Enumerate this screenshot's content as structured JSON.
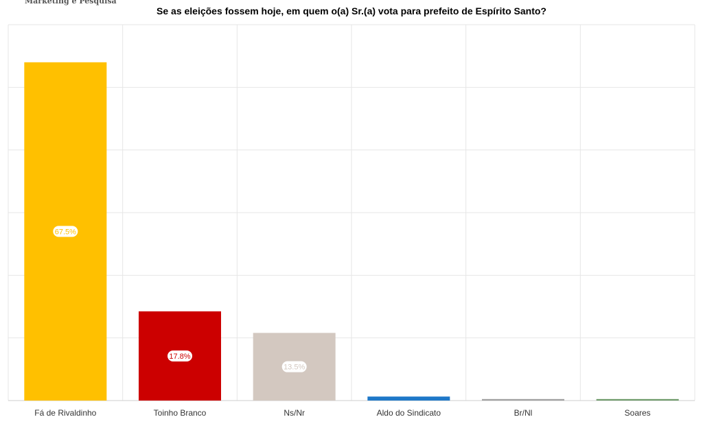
{
  "brand": {
    "subtitle_text": "Marketing e Pesquisa"
  },
  "chart_data": {
    "type": "bar",
    "title": "Se as eleições fossem hoje, em quem o(a) Sr.(a) vota para prefeito de Espírito Santo?",
    "xlabel": "",
    "ylabel": "",
    "categories": [
      "Fá de Rivaldinho",
      "Toinho Branco",
      "Ns/Nr",
      "Aldo do Sindicato",
      "Br/Nl",
      "Soares"
    ],
    "values": [
      67.5,
      17.8,
      13.5,
      0.8,
      0.3,
      0.3
    ],
    "data_labels": [
      "67.5%",
      "17.8%",
      "13.5%",
      "",
      "",
      ""
    ],
    "colors": [
      "#FFC000",
      "#CC0000",
      "#D3C8C0",
      "#1F78C8",
      "#A0A0A0",
      "#6E9A6A"
    ],
    "label_text_colors": [
      "#FFC000",
      "#CC0000",
      "#D3C8C0",
      "",
      "",
      ""
    ],
    "ylim": [
      0,
      75
    ],
    "grid": true,
    "legend": "none"
  }
}
